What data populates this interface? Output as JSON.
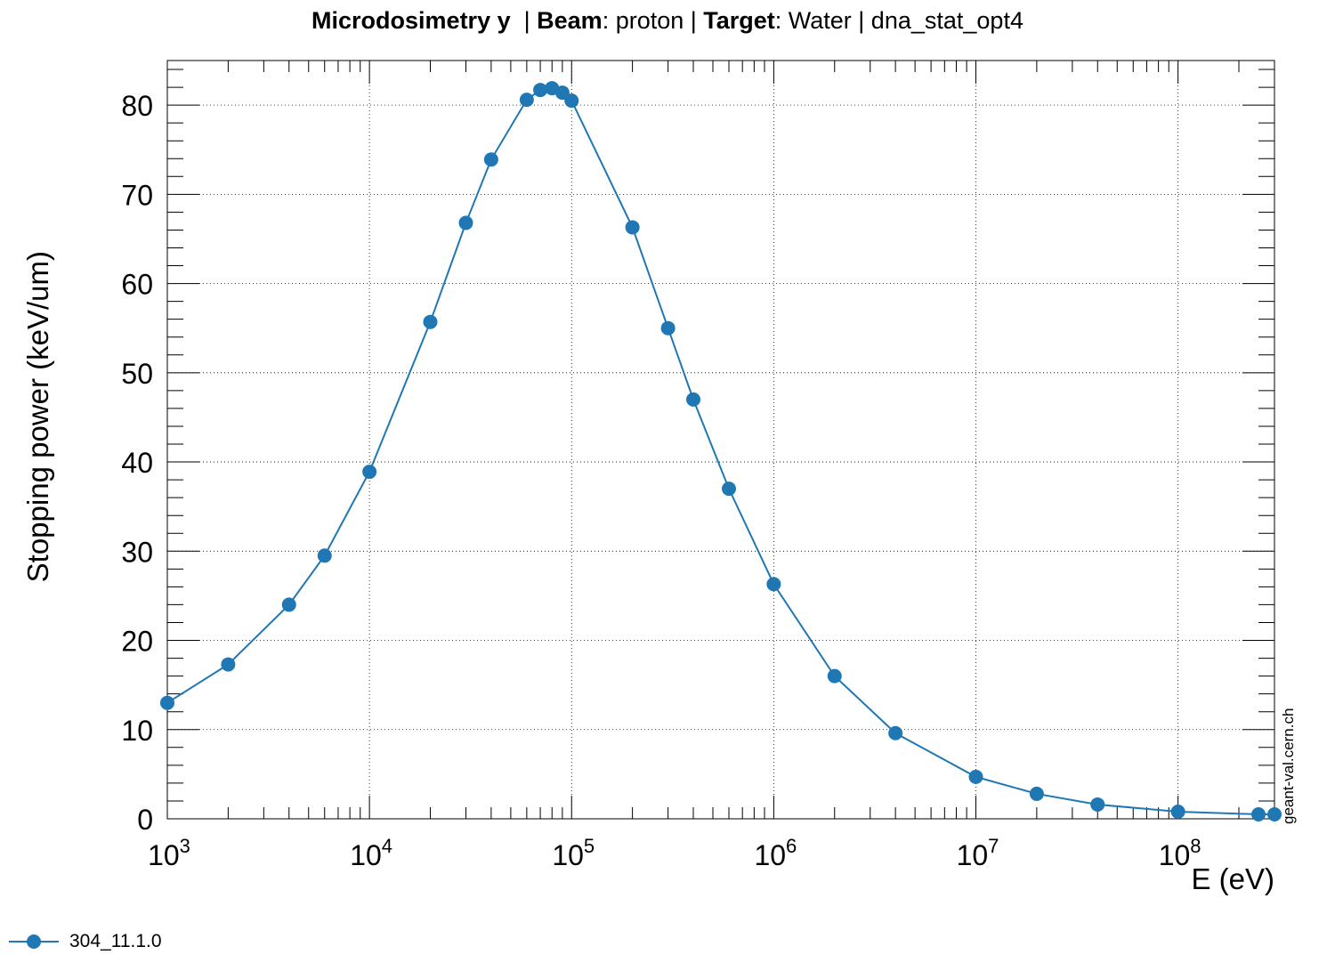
{
  "title": {
    "part1_bold": "Microdosimetry y",
    "part2": "  | ",
    "part3_bold": "Beam",
    "part4": ": proton | ",
    "part5_bold": "Target",
    "part6": ": Water | dna_stat_opt4"
  },
  "watermark": "geant-val.cern.ch",
  "colors": {
    "series": "#1f77b4",
    "grid": "#000000",
    "axis": "#000000"
  },
  "chart_data": {
    "type": "line",
    "xscale": "log",
    "xlim": [
      1000,
      300000000
    ],
    "ylim": [
      0,
      85
    ],
    "xlabel": "E (eV)",
    "ylabel": "Stopping power (keV/um)",
    "grid": true,
    "legend_position": "bottom-left",
    "x_ticks": [
      {
        "value": 1000,
        "base": "10",
        "exp": "3"
      },
      {
        "value": 10000,
        "base": "10",
        "exp": "4"
      },
      {
        "value": 100000,
        "base": "10",
        "exp": "5"
      },
      {
        "value": 1000000,
        "base": "10",
        "exp": "6"
      },
      {
        "value": 10000000,
        "base": "10",
        "exp": "7"
      },
      {
        "value": 100000000,
        "base": "10",
        "exp": "8"
      }
    ],
    "y_ticks": [
      {
        "value": 0,
        "label": "0"
      },
      {
        "value": 10,
        "label": "10"
      },
      {
        "value": 20,
        "label": "20"
      },
      {
        "value": 30,
        "label": "30"
      },
      {
        "value": 40,
        "label": "40"
      },
      {
        "value": 50,
        "label": "50"
      },
      {
        "value": 60,
        "label": "60"
      },
      {
        "value": 70,
        "label": "70"
      },
      {
        "value": 80,
        "label": "80"
      }
    ],
    "series": [
      {
        "name": "304_11.1.0",
        "color": "#1f77b4",
        "x": [
          1000,
          2000,
          4000,
          6000,
          10000,
          20000,
          30000,
          40000,
          60000,
          70000,
          80000,
          90000,
          100000,
          200000,
          300000,
          400000,
          600000,
          1000000,
          2000000,
          4000000,
          10000000,
          20000000,
          40000000,
          100000000,
          250000000,
          300000000
        ],
        "y": [
          13.0,
          17.3,
          24.0,
          29.5,
          38.9,
          55.7,
          66.8,
          73.9,
          80.6,
          81.7,
          81.9,
          81.4,
          80.5,
          66.3,
          55.0,
          47.0,
          37.0,
          26.3,
          16.0,
          9.6,
          4.7,
          2.8,
          1.6,
          0.8,
          0.5,
          0.5
        ]
      }
    ]
  }
}
